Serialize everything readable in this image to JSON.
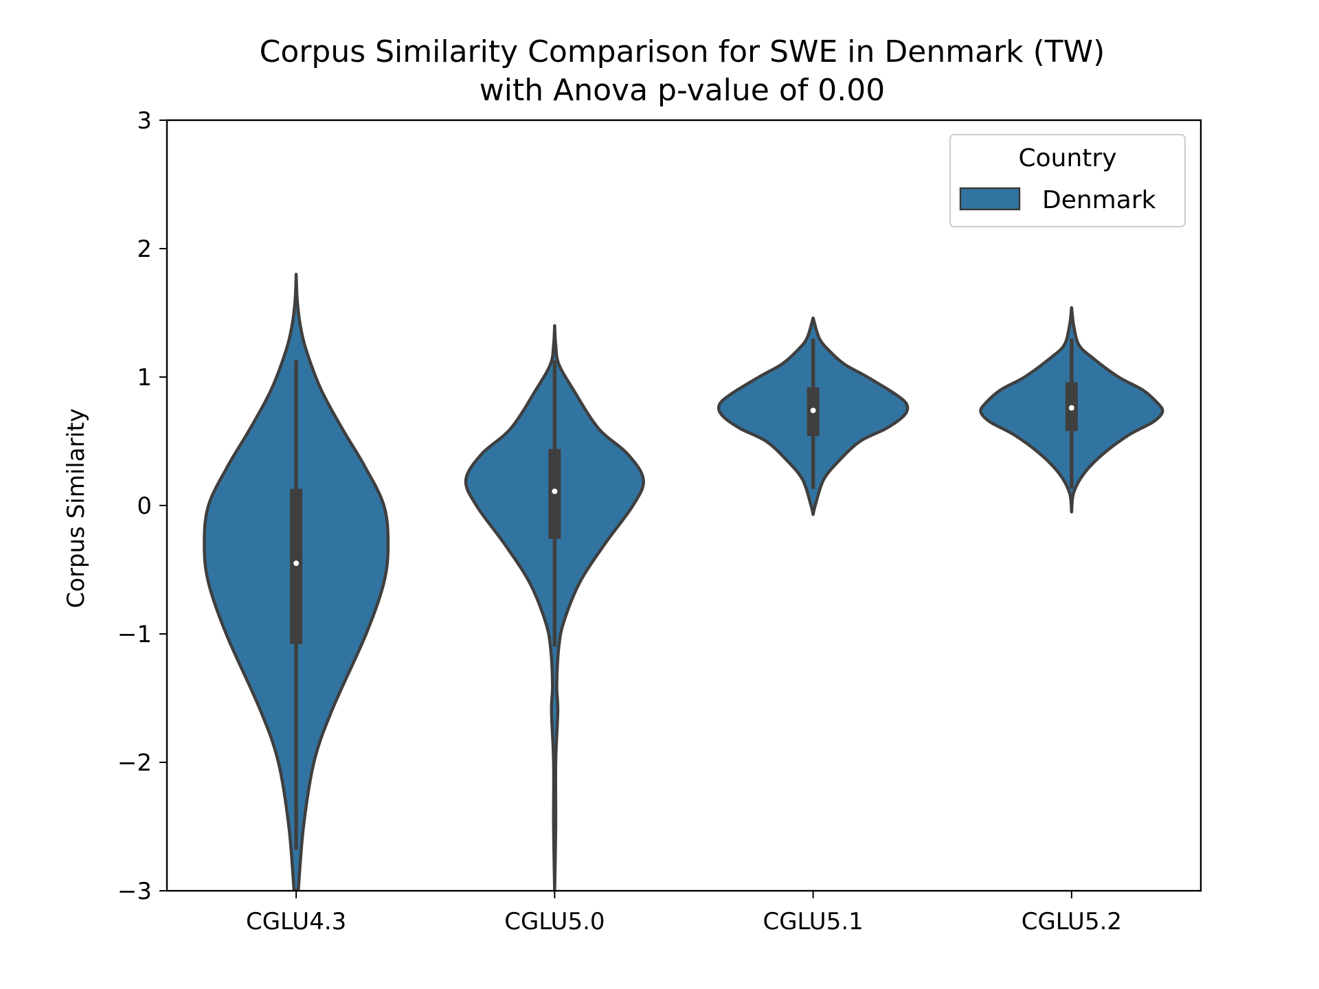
{
  "chart_data": {
    "type": "violin",
    "title": "Corpus Similarity Comparison for SWE in Denmark (TW)",
    "subtitle": "with Anova p-value of 0.00",
    "xlabel": "",
    "ylabel": "Corpus Similarity",
    "ylim": [
      -3,
      3
    ],
    "yticks": [
      {
        "value": 3,
        "label": "3"
      },
      {
        "value": 2,
        "label": "2"
      },
      {
        "value": 1,
        "label": "1"
      },
      {
        "value": 0,
        "label": "0"
      },
      {
        "value": -1,
        "label": "−1"
      },
      {
        "value": -2,
        "label": "−2"
      },
      {
        "value": -3,
        "label": "−3"
      }
    ],
    "categories": [
      "CGLU4.3",
      "CGLU5.0",
      "CGLU5.1",
      "CGLU5.2"
    ],
    "grid": false,
    "legend": {
      "title": "Country",
      "entries": [
        "Denmark"
      ],
      "position": "top-right"
    },
    "series": [
      {
        "name": "Denmark",
        "color": "#3274a1",
        "violins": [
          {
            "category": "CGLU4.3",
            "median": -0.45,
            "q1": -1.08,
            "q3": 0.13,
            "whisker_low": -2.68,
            "whisker_high": 1.13,
            "density": [
              [
                -3.0,
                0.02
              ],
              [
                -2.5,
                0.07
              ],
              [
                -2.0,
                0.17
              ],
              [
                -1.6,
                0.34
              ],
              [
                -1.0,
                0.67
              ],
              [
                -0.6,
                0.84
              ],
              [
                -0.3,
                0.88
              ],
              [
                0.0,
                0.84
              ],
              [
                0.3,
                0.66
              ],
              [
                0.6,
                0.44
              ],
              [
                0.9,
                0.24
              ],
              [
                1.2,
                0.1
              ],
              [
                1.4,
                0.04
              ],
              [
                1.6,
                0.01
              ],
              [
                1.8,
                0.0
              ]
            ]
          },
          {
            "category": "CGLU5.0",
            "median": 0.11,
            "q1": -0.26,
            "q3": 0.44,
            "whisker_low": -1.1,
            "whisker_high": 1.13,
            "density": [
              [
                -3.0,
                0.0
              ],
              [
                -2.5,
                0.01
              ],
              [
                -2.0,
                0.01
              ],
              [
                -1.6,
                0.03
              ],
              [
                -1.4,
                0.02
              ],
              [
                -1.1,
                0.04
              ],
              [
                -0.9,
                0.09
              ],
              [
                -0.6,
                0.24
              ],
              [
                -0.3,
                0.48
              ],
              [
                0.0,
                0.75
              ],
              [
                0.2,
                0.85
              ],
              [
                0.4,
                0.7
              ],
              [
                0.6,
                0.42
              ],
              [
                0.9,
                0.18
              ],
              [
                1.1,
                0.04
              ],
              [
                1.25,
                0.01
              ],
              [
                1.4,
                0.0
              ]
            ]
          },
          {
            "category": "CGLU5.1",
            "median": 0.74,
            "q1": 0.54,
            "q3": 0.92,
            "whisker_low": 0.13,
            "whisker_high": 1.3,
            "density": [
              [
                -0.07,
                0.0
              ],
              [
                0.0,
                0.02
              ],
              [
                0.2,
                0.1
              ],
              [
                0.35,
                0.25
              ],
              [
                0.5,
                0.45
              ],
              [
                0.6,
                0.7
              ],
              [
                0.7,
                0.87
              ],
              [
                0.78,
                0.9
              ],
              [
                0.86,
                0.8
              ],
              [
                1.0,
                0.52
              ],
              [
                1.1,
                0.3
              ],
              [
                1.2,
                0.16
              ],
              [
                1.3,
                0.06
              ],
              [
                1.46,
                0.0
              ]
            ]
          },
          {
            "category": "CGLU5.2",
            "median": 0.76,
            "q1": 0.58,
            "q3": 0.96,
            "whisker_low": 0.13,
            "whisker_high": 1.3,
            "density": [
              [
                -0.05,
                0.0
              ],
              [
                0.1,
                0.02
              ],
              [
                0.25,
                0.12
              ],
              [
                0.4,
                0.3
              ],
              [
                0.55,
                0.55
              ],
              [
                0.65,
                0.78
              ],
              [
                0.73,
                0.87
              ],
              [
                0.8,
                0.82
              ],
              [
                0.9,
                0.68
              ],
              [
                1.0,
                0.45
              ],
              [
                1.15,
                0.2
              ],
              [
                1.25,
                0.07
              ],
              [
                1.4,
                0.02
              ],
              [
                1.54,
                0.0
              ]
            ]
          }
        ]
      }
    ]
  }
}
